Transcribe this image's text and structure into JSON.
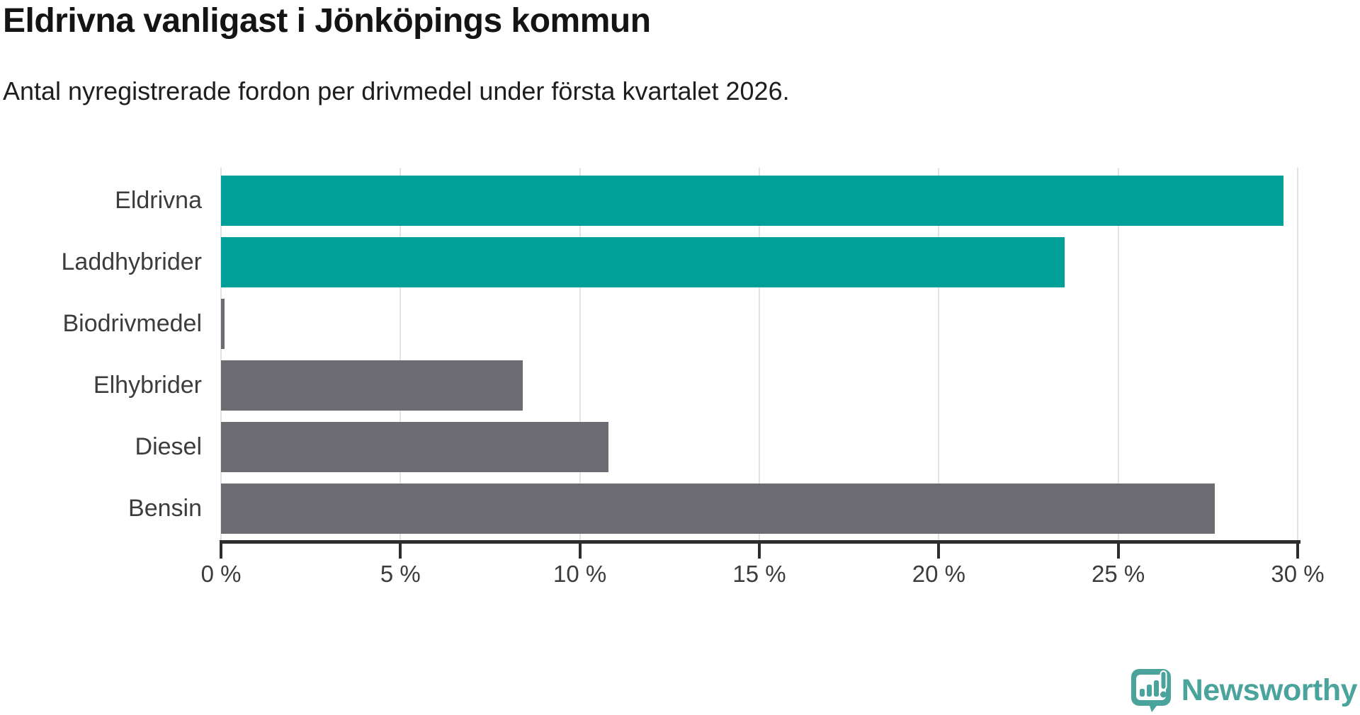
{
  "title": "Eldrivna vanligast i Jönköpings kommun",
  "subtitle": "Antal nyregistrerade fordon per drivmedel under första kvartalet 2026.",
  "chart_data": {
    "type": "bar",
    "orientation": "horizontal",
    "title": "Eldrivna vanligast i Jönköpings kommun",
    "subtitle": "Antal nyregistrerade fordon per drivmedel under första kvartalet 2026.",
    "categories": [
      "Eldrivna",
      "Laddhybrider",
      "Biodrivmedel",
      "Elhybrider",
      "Diesel",
      "Bensin"
    ],
    "values": [
      29.6,
      23.5,
      0.1,
      8.4,
      10.8,
      27.7
    ],
    "unit": "%",
    "xlim": [
      0,
      30
    ],
    "x_ticks": [
      0,
      5,
      10,
      15,
      20,
      25,
      30
    ],
    "x_tick_suffix": " %",
    "grid": true,
    "legend": "none",
    "colors": {
      "highlight": "#00a099",
      "base": "#6c6c72",
      "bar_colors": [
        "#00a099",
        "#00a099",
        "#6c6c72",
        "#6c6c72",
        "#6c6c72",
        "#6c6c72"
      ],
      "gridline": "#e3e3e3",
      "axis": "#2d2d2d",
      "label": "#3c3c3c"
    }
  },
  "branding": {
    "logo_text": "Newsworthy",
    "logo_color": "#4ba49c",
    "logo_icon": "chart-speech-bubble-icon"
  }
}
